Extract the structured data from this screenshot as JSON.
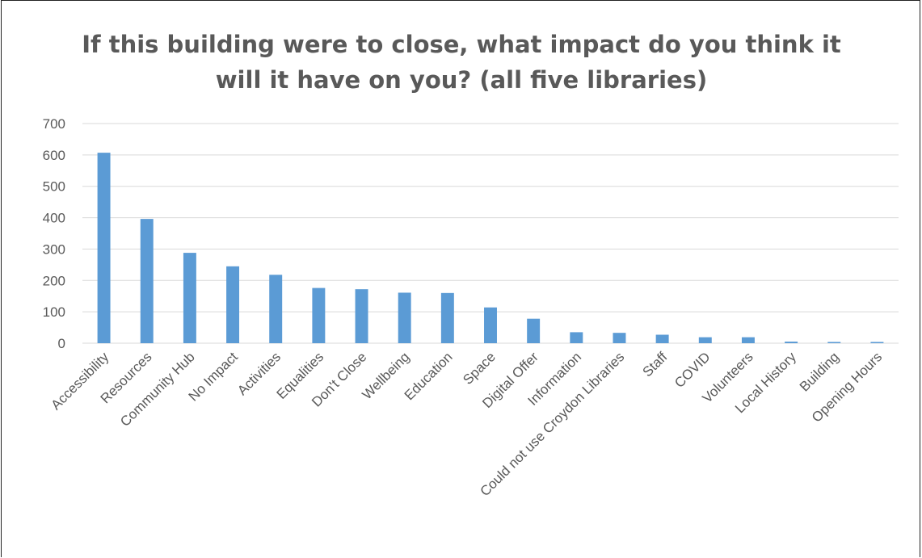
{
  "chart_data": {
    "type": "bar",
    "title_lines": [
      "If this building were to close, what impact do you think it",
      "will it have on you? (all five libraries)"
    ],
    "categories": [
      "Accessibility",
      "Resources",
      "Community Hub",
      "No Impact",
      "Activities",
      "Equalities",
      "Don't Close",
      "Wellbeing",
      "Education",
      "Space",
      "Digital Offer",
      "Information",
      "Could not use Croydon Libraries",
      "Staff",
      "COVID",
      "Volunteers",
      "Local History",
      "Building",
      "Opening Hours"
    ],
    "values": [
      607,
      396,
      288,
      245,
      218,
      176,
      172,
      161,
      160,
      114,
      78,
      35,
      33,
      27,
      19,
      19,
      5,
      4,
      4
    ],
    "ylim": [
      0,
      700
    ],
    "yticks": [
      0,
      100,
      200,
      300,
      400,
      500,
      600,
      700
    ],
    "grid": true,
    "legend": "none",
    "bar_color": "#5B9BD5",
    "grid_color": "#D9D9D9",
    "text_color": "#595959"
  }
}
